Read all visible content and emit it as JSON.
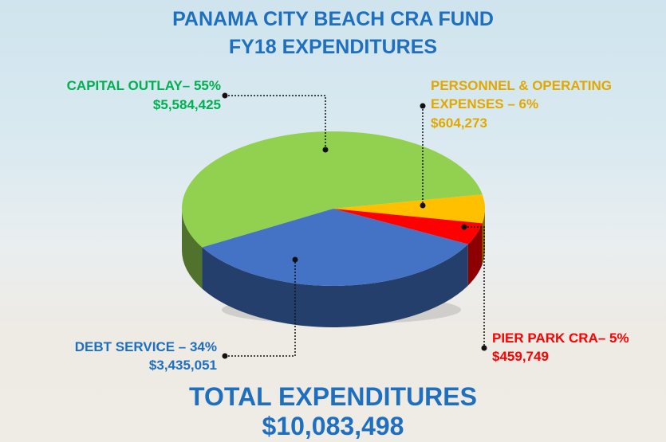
{
  "chart_data": {
    "type": "pie",
    "title": "PANAMA CITY BEACH CRA FUND",
    "subtitle": "FY18 EXPENDITURES",
    "categories": [
      "CAPITAL OUTLAY– 55%",
      "PERSONNEL & OPERATING EXPENSES – 6%",
      "PIER PARK CRA– 5%",
      "DEBT SERVICE – 34%"
    ],
    "values": [
      5584425,
      604273,
      459749,
      3435051
    ],
    "value_labels": [
      "$5,584,425",
      "$604,273",
      "$459,749",
      "$3,435,051"
    ],
    "colors": [
      "#92d050",
      "#ffc000",
      "#ff0000",
      "#4472c4"
    ],
    "label_colors": [
      "#00b050",
      "#e0a800",
      "#ff0000",
      "#1e6fc0"
    ],
    "annotations": [
      "TOTAL EXPENDITURES",
      "$10,083,498"
    ]
  }
}
